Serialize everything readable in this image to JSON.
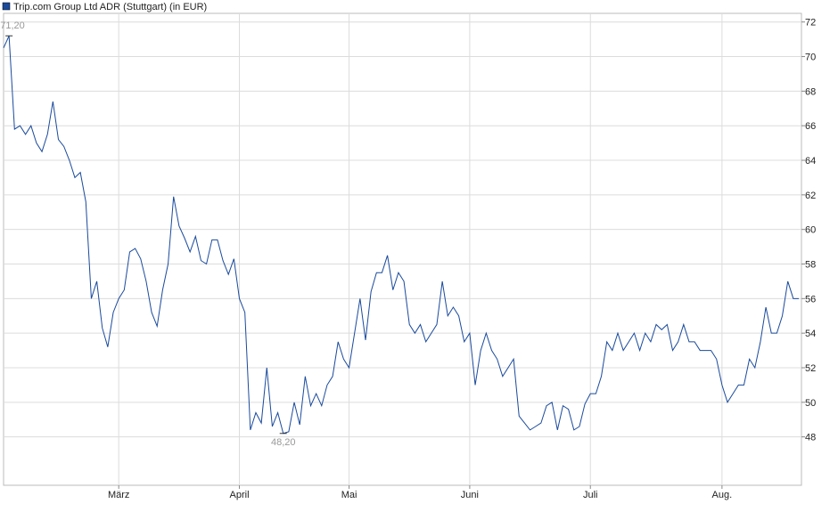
{
  "chart_data": {
    "type": "line",
    "title": "Trip.com Group Ltd ADR (Stuttgart) (in EUR)",
    "series": [
      {
        "name": "Trip.com Group Ltd ADR (Stuttgart) (in EUR)",
        "color": "#1a4a9c",
        "values": [
          70.5,
          71.2,
          65.8,
          66,
          65.5,
          66,
          65,
          64.5,
          65.5,
          67.4,
          65.2,
          64.8,
          64,
          63,
          63.3,
          61.6,
          56,
          57,
          54.3,
          53.2,
          55.2,
          56,
          56.5,
          58.7,
          58.9,
          58.3,
          57,
          55.2,
          54.4,
          56.5,
          58,
          61.9,
          60.2,
          59.5,
          58.7,
          59.6,
          58.2,
          58,
          59.4,
          59.4,
          58.2,
          57.4,
          58.3,
          56,
          55.2,
          48.4,
          49.4,
          48.8,
          52,
          48.6,
          49.4,
          48.2,
          48.3,
          50,
          48.7,
          51.5,
          49.8,
          50.5,
          49.8,
          51,
          51.5,
          53.5,
          52.5,
          52,
          54,
          56,
          53.6,
          56.4,
          57.5,
          57.5,
          58.5,
          56.5,
          57.5,
          57,
          54.5,
          54,
          54.5,
          53.5,
          54,
          54.5,
          57,
          55,
          55.5,
          55,
          53.5,
          54,
          51,
          53,
          54,
          53,
          52.5,
          51.5,
          52,
          52.5,
          49.2,
          48.8,
          48.4,
          48.6,
          48.8,
          49.8,
          50,
          48.4,
          49.8,
          49.6,
          48.4,
          48.6,
          49.9,
          50.5,
          50.5,
          51.5,
          53.5,
          53,
          54,
          53,
          53.5,
          54,
          53,
          54,
          53.5,
          54.5,
          54.2,
          54.5,
          53,
          53.5,
          54.5,
          53.5,
          53.5,
          53,
          53,
          53,
          52.5,
          51,
          50,
          50.5,
          51,
          51,
          52.5,
          52,
          53.5,
          55.5,
          54,
          54,
          55,
          57,
          56,
          56
        ]
      }
    ],
    "annotations": [
      {
        "value": 71.2,
        "label": "71,20"
      },
      {
        "value": 48.2,
        "label": "48,20"
      }
    ],
    "xticks": [
      {
        "value": 21,
        "label": "März"
      },
      {
        "value": 43,
        "label": "April"
      },
      {
        "value": 63,
        "label": "Mai"
      },
      {
        "value": 85,
        "label": "Juni"
      },
      {
        "value": 107,
        "label": "Juli"
      },
      {
        "value": 131,
        "label": "Aug."
      }
    ],
    "ylim": [
      45.2,
      72.5
    ],
    "yticks": [
      48,
      50,
      52,
      54,
      56,
      58,
      60,
      62,
      64,
      66,
      68,
      70,
      72
    ],
    "grid": true
  }
}
